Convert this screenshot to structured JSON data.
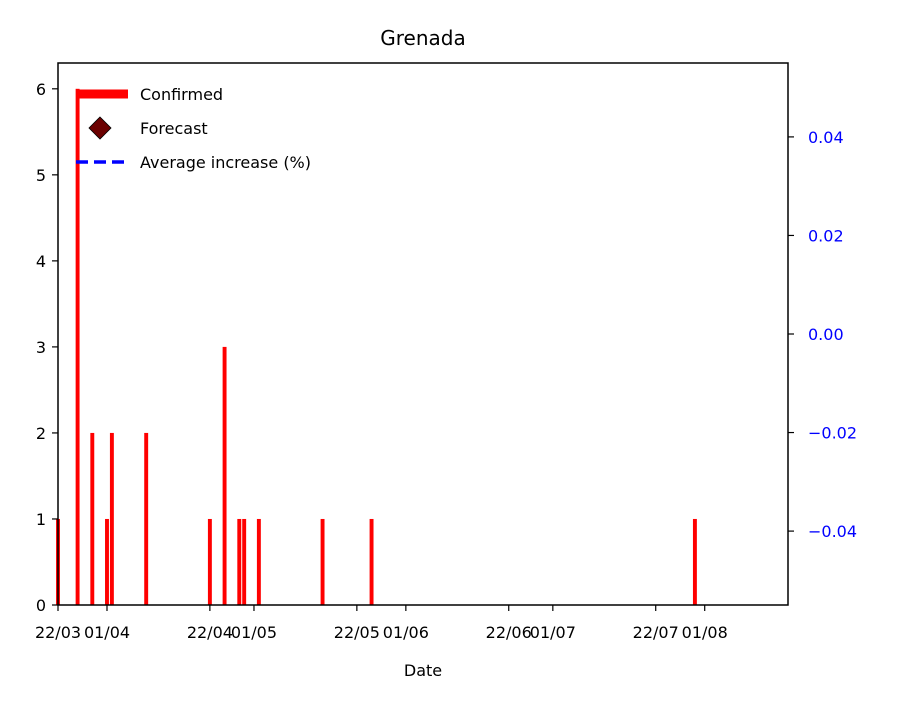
{
  "chart_data": {
    "type": "bar",
    "title": "Grenada",
    "xlabel": "Date",
    "ylabel": "",
    "ylim": [
      0,
      6.3
    ],
    "y_ticks": [
      0,
      1,
      2,
      3,
      4,
      5,
      6
    ],
    "xlim": [
      "2020-03-22",
      "2020-08-18"
    ],
    "x_ticks": [
      {
        "date": "2020-03-22",
        "label": "22/03"
      },
      {
        "date": "2020-04-01",
        "label": "01/04"
      },
      {
        "date": "2020-04-22",
        "label": "22/04"
      },
      {
        "date": "2020-05-01",
        "label": "01/05"
      },
      {
        "date": "2020-05-22",
        "label": "22/05"
      },
      {
        "date": "2020-06-01",
        "label": "01/06"
      },
      {
        "date": "2020-06-22",
        "label": "22/06"
      },
      {
        "date": "2020-07-01",
        "label": "01/07"
      },
      {
        "date": "2020-07-22",
        "label": "22/07"
      },
      {
        "date": "2020-08-01",
        "label": "01/08"
      }
    ],
    "y2lim": [
      -0.055,
      0.055
    ],
    "y2_ticks": [
      {
        "value": 0.04,
        "label": "0.04"
      },
      {
        "value": 0.02,
        "label": "0.02"
      },
      {
        "value": 0.0,
        "label": "0.00"
      },
      {
        "value": -0.02,
        "label": "−0.02"
      },
      {
        "value": -0.04,
        "label": "−0.04"
      }
    ],
    "legend_position": "top-left",
    "legend": [
      {
        "label": "Confirmed",
        "style": "thick-line",
        "color": "#ff0000"
      },
      {
        "label": "Forecast",
        "style": "diamond",
        "color": "#6b0000"
      },
      {
        "label": "Average increase (%)",
        "style": "dashed-line",
        "color": "#0000ff"
      }
    ],
    "series": [
      {
        "name": "Confirmed",
        "color": "#ff0000",
        "x": [
          "2020-03-22",
          "2020-03-26",
          "2020-03-29",
          "2020-04-01",
          "2020-04-02",
          "2020-04-09",
          "2020-04-22",
          "2020-04-25",
          "2020-04-28",
          "2020-04-29",
          "2020-05-02",
          "2020-05-15",
          "2020-05-25",
          "2020-07-30"
        ],
        "values": [
          1,
          6,
          2,
          1,
          2,
          2,
          1,
          3,
          1,
          1,
          1,
          1,
          1,
          1
        ]
      }
    ],
    "colors": {
      "right_axis": "#0000ff"
    }
  }
}
